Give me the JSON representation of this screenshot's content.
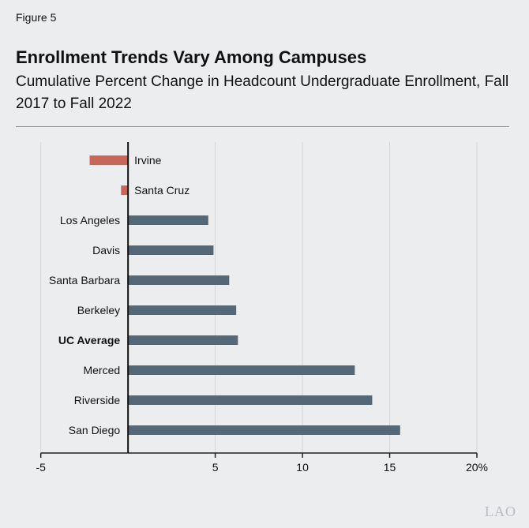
{
  "figure_label": "Figure 5",
  "title": "Enrollment Trends Vary Among Campuses",
  "subtitle": "Cumulative Percent Change in Headcount Undergraduate Enrollment, Fall 2017 to Fall 2022",
  "logo": "LAO",
  "chart_data": {
    "type": "bar",
    "orientation": "horizontal",
    "categories": [
      "Irvine",
      "Santa Cruz",
      "Los Angeles",
      "Davis",
      "Santa Barbara",
      "Berkeley",
      "UC Average",
      "Merced",
      "Riverside",
      "San Diego"
    ],
    "values": [
      -2.2,
      -0.4,
      4.6,
      4.9,
      5.8,
      6.2,
      6.3,
      13.0,
      14.0,
      15.6
    ],
    "highlight": "UC Average",
    "xlim": [
      -5,
      20
    ],
    "xticks": [
      -5,
      5,
      10,
      15,
      20
    ],
    "xtick_labels": [
      "-5",
      "5",
      "10",
      "15",
      "20%"
    ],
    "grid": true,
    "colors": {
      "positive": "#546878",
      "negative": "#c7675a"
    }
  }
}
